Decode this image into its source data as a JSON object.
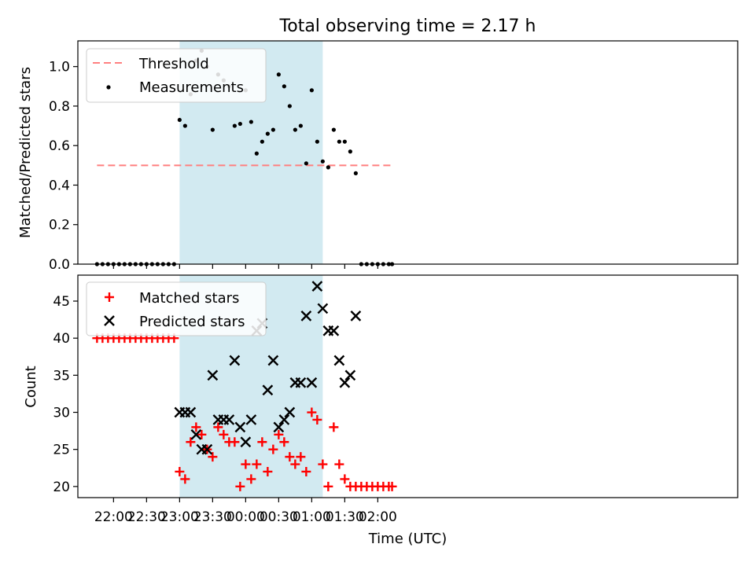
{
  "title": "Total observing time = 2.17 h",
  "colors": {
    "threshold": "#ff7f7f",
    "measurements": "#000000",
    "matched": "#ff0000",
    "predicted": "#000000",
    "span": "#add8e6"
  },
  "chart_data": [
    {
      "type": "scatter",
      "ylabel": "Matched/Predicted stars",
      "ylim": [
        0,
        1.13
      ],
      "yticks": [
        "0.0",
        "0.2",
        "0.4",
        "0.6",
        "0.8",
        "1.0"
      ],
      "legend": {
        "placement": "top-left",
        "entries": [
          "Threshold",
          "Measurements"
        ]
      },
      "shaded_span": [
        "23:00",
        "01:10"
      ],
      "threshold": {
        "name": "Threshold",
        "y": 0.5,
        "x_range": [
          "21:45",
          "02:13"
        ]
      },
      "series": [
        {
          "name": "Measurements",
          "x": [
            "21:45",
            "21:50",
            "21:55",
            "22:00",
            "22:05",
            "22:10",
            "22:15",
            "22:20",
            "22:25",
            "22:30",
            "22:35",
            "22:40",
            "22:45",
            "22:50",
            "22:55",
            "23:00",
            "23:05",
            "23:10",
            "23:15",
            "23:20",
            "23:25",
            "23:30",
            "23:35",
            "23:40",
            "23:45",
            "23:50",
            "23:55",
            "00:00",
            "00:05",
            "00:10",
            "00:15",
            "00:20",
            "00:25",
            "00:30",
            "00:35",
            "00:40",
            "00:45",
            "00:50",
            "00:55",
            "01:00",
            "01:05",
            "01:10",
            "01:15",
            "01:20",
            "01:25",
            "01:30",
            "01:35",
            "01:40",
            "01:45",
            "01:50",
            "01:55",
            "02:00",
            "02:05",
            "02:10",
            "02:13"
          ],
          "y": [
            0,
            0,
            0,
            0,
            0,
            0,
            0,
            0,
            0,
            0,
            0,
            0,
            0,
            0,
            0,
            0.73,
            0.7,
            0.86,
            1.03,
            1.08,
            1.0,
            0.68,
            0.96,
            0.93,
            0.9,
            0.7,
            0.71,
            0.88,
            0.72,
            0.56,
            0.62,
            0.66,
            0.68,
            0.96,
            0.9,
            0.8,
            0.68,
            0.7,
            0.51,
            0.88,
            0.62,
            0.52,
            0.49,
            0.68,
            0.62,
            0.62,
            0.57,
            0.46,
            0,
            0,
            0,
            0,
            0,
            0,
            0
          ]
        }
      ]
    },
    {
      "type": "scatter",
      "xlabel": "Time (UTC)",
      "ylabel": "Count",
      "ylim": [
        18.5,
        48.5
      ],
      "yticks": [
        "20",
        "25",
        "30",
        "35",
        "40",
        "45"
      ],
      "xticks": [
        "22:00",
        "22:30",
        "23:00",
        "23:30",
        "00:00",
        "00:30",
        "01:00",
        "01:30",
        "02:00"
      ],
      "legend": {
        "placement": "top-left",
        "entries": [
          "Matched stars",
          "Predicted stars"
        ]
      },
      "shaded_span": [
        "23:00",
        "01:10"
      ],
      "series": [
        {
          "name": "Matched stars",
          "x": [
            "21:45",
            "21:50",
            "21:55",
            "22:00",
            "22:05",
            "22:10",
            "22:15",
            "22:20",
            "22:25",
            "22:30",
            "22:35",
            "22:40",
            "22:45",
            "22:50",
            "22:55",
            "23:00",
            "23:05",
            "23:10",
            "23:15",
            "23:20",
            "23:25",
            "23:30",
            "23:35",
            "23:40",
            "23:45",
            "23:50",
            "23:55",
            "00:00",
            "00:05",
            "00:10",
            "00:15",
            "00:20",
            "00:25",
            "00:30",
            "00:35",
            "00:40",
            "00:45",
            "00:50",
            "00:55",
            "01:00",
            "01:05",
            "01:10",
            "01:15",
            "01:20",
            "01:25",
            "01:30",
            "01:35",
            "01:40",
            "01:45",
            "01:50",
            "01:55",
            "02:00",
            "02:05",
            "02:10",
            "02:13"
          ],
          "y": [
            40,
            40,
            40,
            40,
            40,
            40,
            40,
            40,
            40,
            40,
            40,
            40,
            40,
            40,
            40,
            22,
            21,
            26,
            28,
            27,
            25,
            24,
            28,
            27,
            26,
            26,
            20,
            23,
            21,
            23,
            26,
            22,
            25,
            27,
            26,
            24,
            23,
            24,
            22,
            30,
            29,
            23,
            20,
            28,
            23,
            21,
            20,
            20,
            20,
            20,
            20,
            20,
            20,
            20,
            20
          ]
        },
        {
          "name": "Predicted stars",
          "x": [
            "23:00",
            "23:05",
            "23:10",
            "23:15",
            "23:20",
            "23:25",
            "23:30",
            "23:35",
            "23:40",
            "23:45",
            "23:50",
            "23:55",
            "00:00",
            "00:05",
            "00:10",
            "00:15",
            "00:20",
            "00:25",
            "00:30",
            "00:35",
            "00:40",
            "00:45",
            "00:50",
            "00:55",
            "01:00",
            "01:05",
            "01:10",
            "01:15",
            "01:20",
            "01:25",
            "01:30",
            "01:35",
            "01:40"
          ],
          "y": [
            30,
            30,
            30,
            27,
            25,
            25,
            35,
            29,
            29,
            29,
            37,
            28,
            26,
            29,
            41,
            42,
            33,
            37,
            28,
            29,
            30,
            34,
            34,
            43,
            34,
            47,
            44,
            41,
            41,
            37,
            34,
            35,
            43
          ]
        }
      ]
    }
  ]
}
